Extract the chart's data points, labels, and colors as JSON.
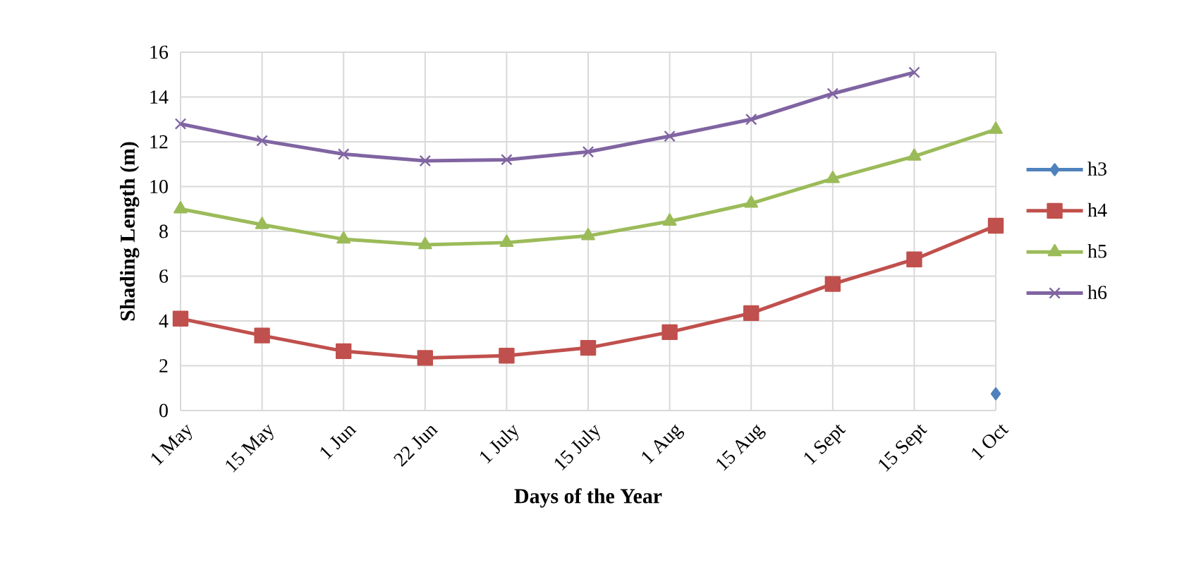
{
  "chart_data": {
    "type": "line",
    "xlabel": "Days of the Year",
    "ylabel": "Shading Length (m)",
    "categories": [
      "1 May",
      "15 May",
      "1 Jun",
      "22 Jun",
      "1 July",
      "15 July",
      "1 Aug",
      "15 Aug",
      "1 Sept",
      "15 Sept",
      "1 Oct"
    ],
    "series": [
      {
        "name": "h3",
        "color": "#4f81bd",
        "marker": "diamond",
        "values": [
          null,
          null,
          null,
          null,
          null,
          null,
          null,
          null,
          null,
          null,
          0.75
        ]
      },
      {
        "name": "h4",
        "color": "#c0504d",
        "marker": "square",
        "values": [
          4.1,
          3.35,
          2.65,
          2.35,
          2.45,
          2.8,
          3.5,
          4.35,
          5.65,
          6.75,
          8.25
        ]
      },
      {
        "name": "h5",
        "color": "#9bbb59",
        "marker": "triangle",
        "values": [
          9.0,
          8.3,
          7.65,
          7.4,
          7.5,
          7.8,
          8.45,
          9.25,
          10.35,
          11.35,
          12.55
        ]
      },
      {
        "name": "h6",
        "color": "#8064a2",
        "marker": "cross",
        "values": [
          12.8,
          12.05,
          11.45,
          11.15,
          11.2,
          11.55,
          12.25,
          13.0,
          14.15,
          15.1,
          null
        ]
      }
    ],
    "ylim": [
      0,
      16
    ],
    "yticks": [
      0,
      2,
      4,
      6,
      8,
      10,
      12,
      14,
      16
    ],
    "grid": true,
    "legend": "right"
  }
}
